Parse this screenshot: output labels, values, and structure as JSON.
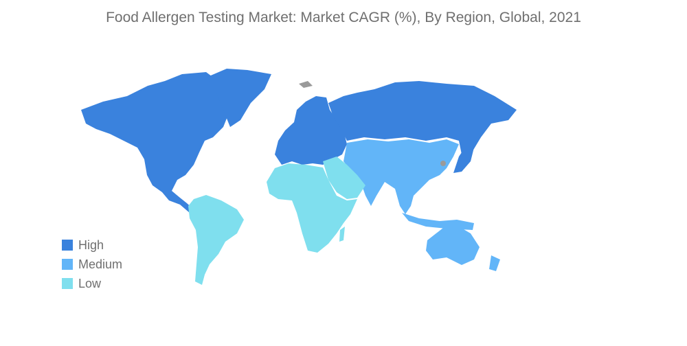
{
  "title": "Food Allergen Testing Market: Market CAGR (%), By Region, Global, 2021",
  "legend": [
    {
      "label": "High",
      "color": "#3a82dd"
    },
    {
      "label": "Medium",
      "color": "#62b5f8"
    },
    {
      "label": "Low",
      "color": "#7fdfee"
    }
  ],
  "no_data_color": "#9a9a9a",
  "regions": [
    {
      "name": "North America",
      "level": "High"
    },
    {
      "name": "Europe",
      "level": "High"
    },
    {
      "name": "Russia",
      "level": "High"
    },
    {
      "name": "Asia-Pacific",
      "level": "Medium"
    },
    {
      "name": "South America",
      "level": "Low"
    },
    {
      "name": "Middle East and Africa",
      "level": "Low"
    }
  ]
}
